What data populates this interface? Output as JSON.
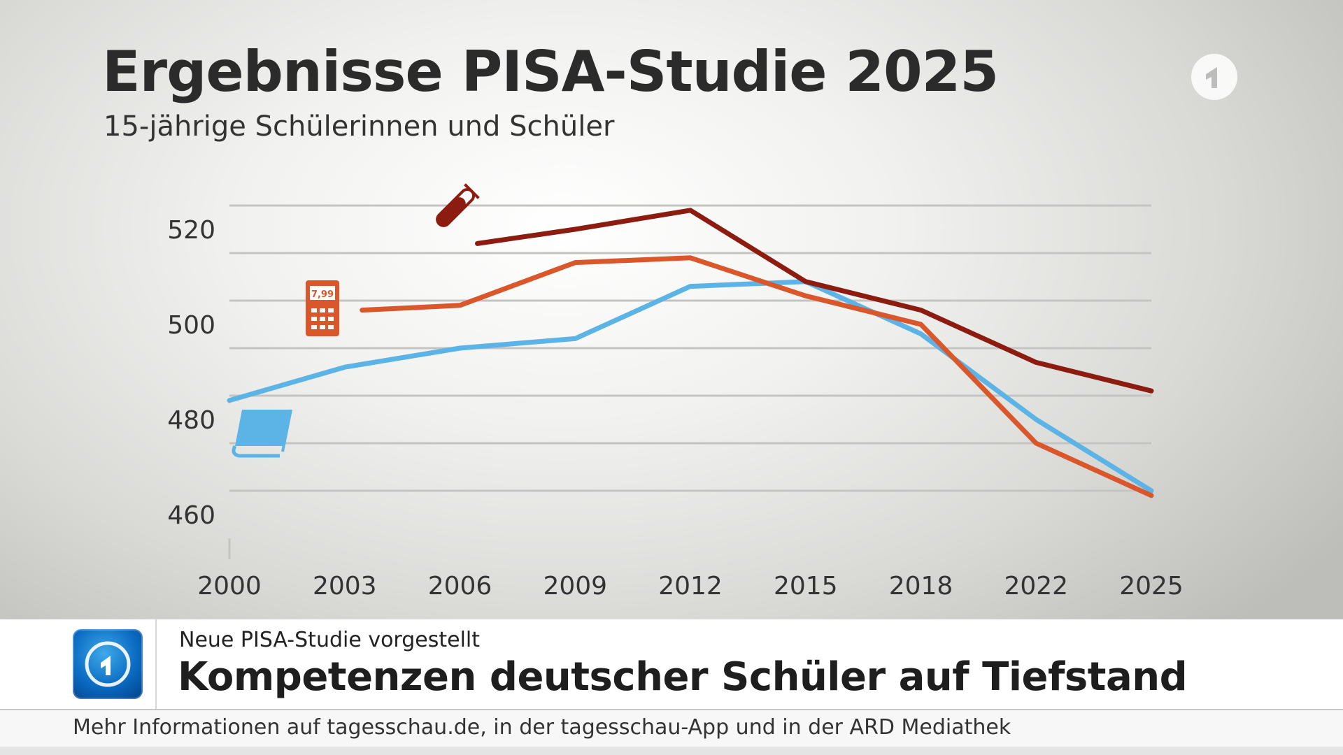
{
  "header": {
    "title": "Ergebnisse PISA-Studie 2025",
    "subtitle": "15-jährige Schülerinnen und Schüler"
  },
  "chart_data": {
    "type": "line",
    "title": "Ergebnisse PISA-Studie 2025",
    "subtitle": "15-jährige Schülerinnen und Schüler",
    "x": [
      "2000",
      "2003",
      "2006",
      "2009",
      "2012",
      "2015",
      "2018",
      "2022",
      "2025"
    ],
    "yticks": [
      460,
      480,
      500,
      520
    ],
    "ylim": [
      450,
      530
    ],
    "grid": true,
    "series": [
      {
        "icon": "book-icon",
        "color": "#5bb4e5",
        "values": [
          484,
          491,
          495,
          497,
          508,
          509,
          498,
          480,
          465
        ]
      },
      {
        "icon": "calculator-icon",
        "color": "#d9572a",
        "values": [
          null,
          503,
          504,
          513,
          514,
          506,
          500,
          475,
          464
        ]
      },
      {
        "icon": "test-tube-icon",
        "color": "#8c1c0f",
        "values": [
          null,
          null,
          517,
          520,
          524,
          509,
          503,
          492,
          486
        ]
      }
    ],
    "icon_texts": {
      "calculator": "7,99"
    }
  },
  "lower_third": {
    "kicker": "Neue PISA-Studie vorgestellt",
    "headline": "Kompetenzen deutscher Schüler auf Tiefstand",
    "ticker": "Mehr Informationen auf tagesschau.de, in der tagesschau-App und in der ARD Mediathek"
  },
  "colors": {
    "grid": "#c4c4c2",
    "baseline": "#9a9a98",
    "text": "#333333"
  }
}
